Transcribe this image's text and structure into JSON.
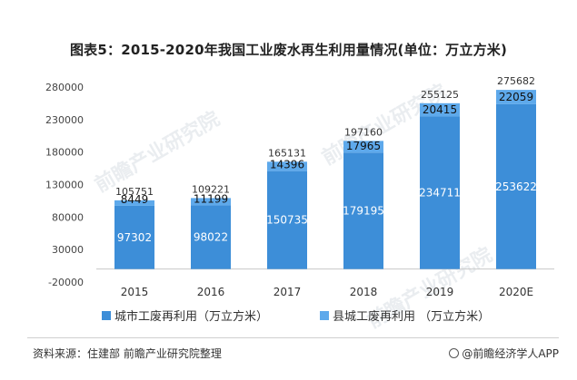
{
  "chart_data": {
    "type": "bar",
    "stacked": true,
    "title": "图表5：2015-2020年我国工业废水再生利用量情况(单位：万立方米)",
    "categories": [
      "2015",
      "2016",
      "2017",
      "2018",
      "2019",
      "2020E"
    ],
    "series": [
      {
        "name": "城市工废再利用（万立方米）",
        "color": "#3d8ed8",
        "values": [
          97302,
          98022,
          150735,
          179195,
          234711,
          253622
        ]
      },
      {
        "name": "县城工废再利用 （万立方米）",
        "color": "#5ea9eb",
        "values": [
          8449,
          11199,
          14396,
          17965,
          20415,
          22059
        ]
      }
    ],
    "totals": [
      105751,
      109221,
      165131,
      197160,
      255125,
      275682
    ],
    "yticks": [
      -20000,
      30000,
      80000,
      130000,
      180000,
      230000,
      280000
    ],
    "ylim": [
      -20000,
      280000
    ],
    "legend_position": "bottom"
  },
  "footer": {
    "source": "资料来源：住建部 前瞻产业研究院整理",
    "brand": "@前瞻经济学人APP"
  },
  "watermark": {
    "text": "前瞻产业研究院"
  }
}
